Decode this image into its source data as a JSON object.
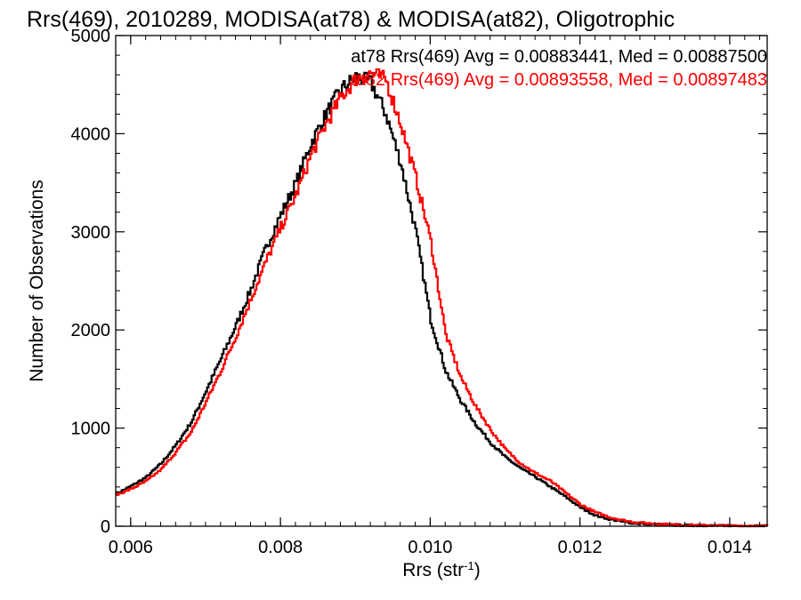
{
  "chart_data": {
    "type": "line",
    "title": "Rrs(469), 2010289, MODISA(at78) & MODISA(at82), Oligotrophic",
    "xlabel": "Rrs (str",
    "xlabel_sup": "-1",
    "xlabel_close": ")",
    "ylabel": "Number of Observations",
    "xlim": [
      0.0058,
      0.0145
    ],
    "ylim": [
      0,
      5000
    ],
    "xticks": [
      0.006,
      0.008,
      0.01,
      0.012,
      0.014
    ],
    "xtick_labels": [
      "0.006",
      "0.008",
      "0.010",
      "0.012",
      "0.014"
    ],
    "yticks": [
      0,
      1000,
      2000,
      3000,
      4000,
      5000
    ],
    "ytick_labels": [
      "0",
      "1000",
      "2000",
      "3000",
      "4000",
      "5000"
    ],
    "grid": false,
    "legend_position": "top-right",
    "step": true,
    "series": [
      {
        "name": "at78 Rrs(469) Avg = 0.00883441, Med = 0.00887500",
        "color": "#000000",
        "x": [
          0.0058,
          0.006,
          0.0062,
          0.0064,
          0.0066,
          0.0068,
          0.007,
          0.0072,
          0.0074,
          0.0076,
          0.0078,
          0.008,
          0.0082,
          0.0084,
          0.0086,
          0.0088,
          0.009,
          0.0092,
          0.0094,
          0.0096,
          0.0098,
          0.01,
          0.0102,
          0.0104,
          0.0106,
          0.0108,
          0.011,
          0.0112,
          0.0114,
          0.0116,
          0.0118,
          0.012,
          0.0122,
          0.0124,
          0.0126,
          0.0128,
          0.013,
          0.0132,
          0.0134,
          0.0136,
          0.0138,
          0.014,
          0.0142,
          0.0145
        ],
        "values": [
          330,
          410,
          500,
          640,
          830,
          1060,
          1380,
          1710,
          2050,
          2420,
          2840,
          3180,
          3500,
          3900,
          4200,
          4450,
          4580,
          4520,
          4200,
          3700,
          3000,
          2100,
          1580,
          1280,
          1040,
          850,
          700,
          590,
          500,
          400,
          300,
          190,
          110,
          70,
          40,
          25,
          18,
          12,
          9,
          7,
          5,
          4,
          3,
          2
        ]
      },
      {
        "name": "at82 Rrs(469) Avg = 0.00893558, Med = 0.00897483",
        "color": "#ff0000",
        "x": [
          0.0058,
          0.006,
          0.0062,
          0.0064,
          0.0066,
          0.0068,
          0.007,
          0.0072,
          0.0074,
          0.0076,
          0.0078,
          0.008,
          0.0082,
          0.0084,
          0.0086,
          0.0088,
          0.009,
          0.0092,
          0.0094,
          0.0096,
          0.0098,
          0.01,
          0.0102,
          0.0104,
          0.0106,
          0.0108,
          0.011,
          0.0112,
          0.0114,
          0.0116,
          0.0118,
          0.012,
          0.0122,
          0.0124,
          0.0126,
          0.0128,
          0.013,
          0.0132,
          0.0134,
          0.0136,
          0.0138,
          0.014,
          0.0142,
          0.0145
        ],
        "values": [
          320,
          380,
          460,
          580,
          760,
          960,
          1270,
          1590,
          1940,
          2320,
          2700,
          3050,
          3380,
          3780,
          4100,
          4370,
          4560,
          4620,
          4550,
          4100,
          3550,
          2900,
          1950,
          1520,
          1220,
          980,
          780,
          640,
          540,
          460,
          340,
          220,
          140,
          90,
          55,
          35,
          25,
          18,
          12,
          9,
          7,
          5,
          4,
          3
        ]
      }
    ]
  }
}
